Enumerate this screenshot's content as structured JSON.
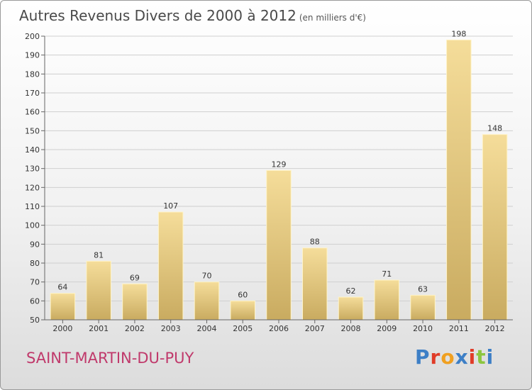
{
  "header": {
    "title": "Autres Revenus Divers de 2000 à 2012",
    "subtitle": "(en milliers d'€)"
  },
  "footer": {
    "location": "SAINT-MARTIN-DU-PUY",
    "brand": [
      "P",
      "r",
      "o",
      "x",
      "i",
      "t",
      "i"
    ],
    "brand_colors": [
      "#3d7fc6",
      "#e03c28",
      "#f0a020",
      "#3d7fc6",
      "#e03c28",
      "#8cc63f",
      "#3d7fc6"
    ]
  },
  "colors": {
    "bar_top": "#f5dd9a",
    "bar_bottom": "#c9ab60",
    "bar_edge": "#fff4c8",
    "grid": "#cfcfcf",
    "axis": "#666666",
    "text": "#333333"
  },
  "chart_data": {
    "type": "bar",
    "categories": [
      "2000",
      "2001",
      "2002",
      "2003",
      "2004",
      "2005",
      "2006",
      "2007",
      "2008",
      "2009",
      "2010",
      "2011",
      "2012"
    ],
    "values": [
      64,
      81,
      69,
      107,
      70,
      60,
      129,
      88,
      62,
      71,
      63,
      198,
      148
    ],
    "title": "Autres Revenus Divers de 2000 à 2012",
    "subtitle": "(en milliers d'€)",
    "xlabel": "",
    "ylabel": "",
    "ylim": [
      50,
      200
    ],
    "ytick_step": 10,
    "grid": true,
    "legend": "none"
  }
}
